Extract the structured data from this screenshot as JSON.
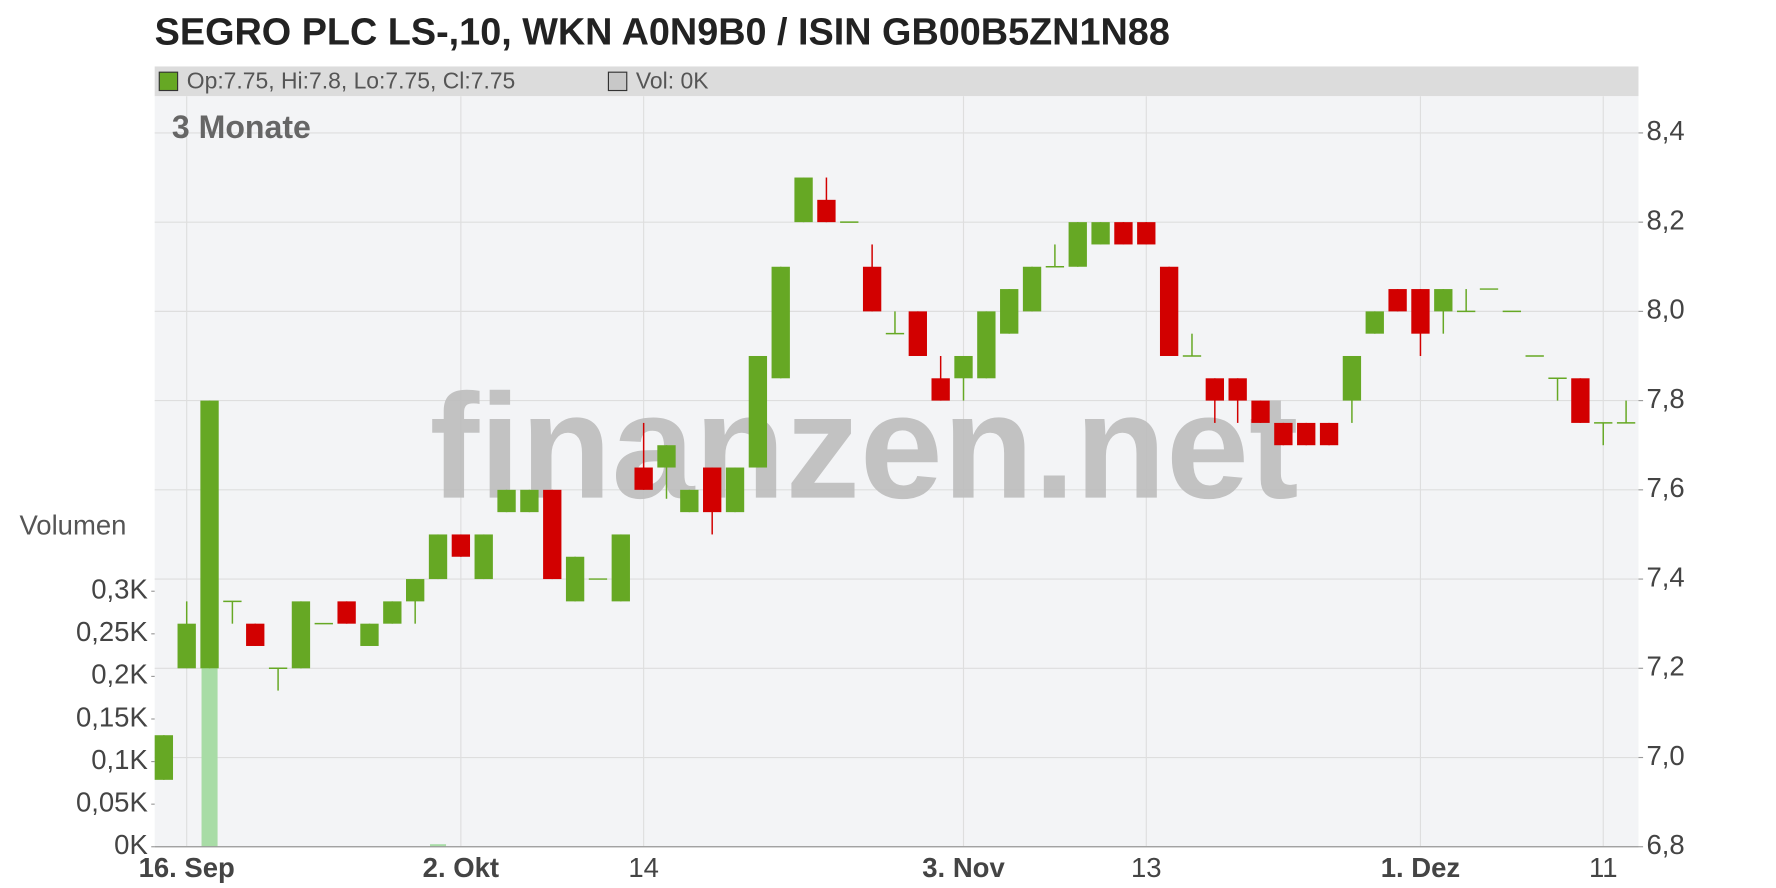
{
  "title": "SEGRO PLC LS-,10, WKN A0N9B0 / ISIN GB00B5ZN1N88",
  "info_bar": {
    "ohlc": "Op:7.75, Hi:7.8, Lo:7.75, Cl:7.75",
    "volume": "Vol: 0K"
  },
  "chart_data": {
    "type": "candlestick",
    "period_label": "3 Monate",
    "watermark": "finanzen.net",
    "categories": [
      null,
      "16. Sep",
      null,
      null,
      null,
      null,
      null,
      null,
      null,
      null,
      null,
      null,
      null,
      "2. Okt",
      null,
      null,
      null,
      null,
      null,
      null,
      null,
      "14",
      null,
      null,
      null,
      null,
      null,
      null,
      null,
      null,
      null,
      null,
      null,
      null,
      null,
      "3. Nov",
      null,
      null,
      null,
      null,
      null,
      null,
      null,
      "13",
      null,
      null,
      null,
      null,
      null,
      null,
      null,
      null,
      null,
      null,
      null,
      "1. Dez",
      null,
      null,
      null,
      null,
      null,
      null,
      null,
      "11",
      null
    ],
    "open": [
      6.95,
      7.2,
      7.2,
      7.35,
      7.3,
      7.2,
      7.2,
      7.3,
      7.35,
      7.25,
      7.3,
      7.35,
      7.4,
      7.5,
      7.4,
      7.55,
      7.55,
      7.6,
      7.35,
      7.4,
      7.35,
      7.65,
      7.65,
      7.55,
      7.65,
      7.55,
      7.65,
      7.85,
      8.2,
      8.25,
      8.2,
      8.1,
      7.95,
      8.0,
      7.85,
      7.85,
      7.85,
      7.95,
      8.0,
      8.1,
      8.1,
      8.15,
      8.2,
      8.2,
      8.1,
      7.9,
      7.85,
      7.85,
      7.8,
      7.75,
      7.75,
      7.75,
      7.8,
      7.95,
      8.05,
      8.05,
      8.0,
      8.0,
      8.05,
      8.0,
      7.9,
      7.85,
      7.85,
      7.75,
      7.75
    ],
    "high": [
      7.05,
      7.35,
      7.8,
      7.35,
      7.3,
      7.2,
      7.35,
      7.3,
      7.35,
      7.3,
      7.35,
      7.4,
      7.5,
      7.5,
      7.5,
      7.6,
      7.6,
      7.6,
      7.45,
      7.4,
      7.5,
      7.75,
      7.7,
      7.6,
      7.65,
      7.65,
      7.9,
      8.1,
      8.3,
      8.3,
      8.2,
      8.15,
      8.0,
      8.0,
      7.9,
      7.9,
      8.0,
      8.05,
      8.1,
      8.15,
      8.2,
      8.2,
      8.2,
      8.2,
      8.1,
      7.95,
      7.85,
      7.85,
      7.8,
      7.75,
      7.75,
      7.75,
      7.9,
      8.0,
      8.05,
      8.05,
      8.05,
      8.05,
      8.05,
      8.0,
      7.9,
      7.85,
      7.85,
      7.75,
      7.8
    ],
    "low": [
      6.95,
      7.2,
      7.2,
      7.3,
      7.25,
      7.15,
      7.2,
      7.3,
      7.3,
      7.25,
      7.3,
      7.3,
      7.4,
      7.45,
      7.4,
      7.55,
      7.55,
      7.4,
      7.35,
      7.4,
      7.35,
      7.6,
      7.58,
      7.55,
      7.5,
      7.55,
      7.65,
      7.85,
      8.2,
      8.2,
      8.2,
      8.0,
      7.95,
      7.9,
      7.8,
      7.8,
      7.85,
      7.95,
      8.0,
      8.1,
      8.1,
      8.15,
      8.15,
      8.15,
      7.9,
      7.9,
      7.75,
      7.75,
      7.75,
      7.7,
      7.7,
      7.7,
      7.75,
      7.95,
      8.0,
      7.9,
      7.95,
      8.0,
      8.05,
      8.0,
      7.9,
      7.8,
      7.75,
      7.7,
      7.75
    ],
    "close": [
      7.05,
      7.3,
      7.8,
      7.35,
      7.25,
      7.2,
      7.35,
      7.3,
      7.3,
      7.3,
      7.35,
      7.4,
      7.5,
      7.45,
      7.5,
      7.6,
      7.6,
      7.4,
      7.45,
      7.4,
      7.5,
      7.6,
      7.7,
      7.6,
      7.55,
      7.65,
      7.9,
      8.1,
      8.3,
      8.2,
      8.2,
      8.0,
      7.95,
      7.9,
      7.8,
      7.9,
      8.0,
      8.05,
      8.1,
      8.1,
      8.2,
      8.2,
      8.15,
      8.15,
      7.9,
      7.9,
      7.8,
      7.8,
      7.75,
      7.7,
      7.7,
      7.7,
      7.9,
      8.0,
      8.0,
      7.95,
      8.05,
      8.0,
      8.05,
      8.0,
      7.9,
      7.85,
      7.75,
      7.75,
      7.75
    ],
    "up_color": "#66a824",
    "down_color": "#d20000",
    "ylim": [
      6.8,
      8.4
    ],
    "yticks": [
      {
        "value": 6.8,
        "label": "6,8"
      },
      {
        "value": 7.0,
        "label": "7,0"
      },
      {
        "value": 7.2,
        "label": "7,2"
      },
      {
        "value": 7.4,
        "label": "7,4"
      },
      {
        "value": 7.6,
        "label": "7,6"
      },
      {
        "value": 7.8,
        "label": "7,8"
      },
      {
        "value": 8.0,
        "label": "8,0"
      },
      {
        "value": 8.2,
        "label": "8,2"
      },
      {
        "value": 8.4,
        "label": "8,4"
      }
    ],
    "grid": true,
    "volume": {
      "label": "Volumen",
      "color": "#a8dca6",
      "values": [
        0,
        0,
        0.21,
        0,
        0,
        0,
        0,
        0,
        0,
        0,
        0,
        0,
        0.003,
        0,
        0,
        0,
        0,
        0,
        0,
        0,
        0,
        0,
        0,
        0,
        0,
        0,
        0,
        0,
        0,
        0,
        0,
        0,
        0,
        0,
        0,
        0,
        0,
        0,
        0,
        0,
        0,
        0,
        0,
        0,
        0,
        0,
        0,
        0,
        0,
        0,
        0,
        0,
        0,
        0,
        0,
        0,
        0,
        0,
        0,
        0,
        0,
        0,
        0,
        0,
        0
      ],
      "ylim": [
        0,
        0.3
      ],
      "yticks": [
        {
          "value": 0,
          "label": "0K"
        },
        {
          "value": 0.05,
          "label": "0,05K"
        },
        {
          "value": 0.1,
          "label": "0,1K"
        },
        {
          "value": 0.15,
          "label": "0,15K"
        },
        {
          "value": 0.2,
          "label": "0,2K"
        },
        {
          "value": 0.25,
          "label": "0,25K"
        },
        {
          "value": 0.3,
          "label": "0,3K"
        }
      ]
    }
  }
}
